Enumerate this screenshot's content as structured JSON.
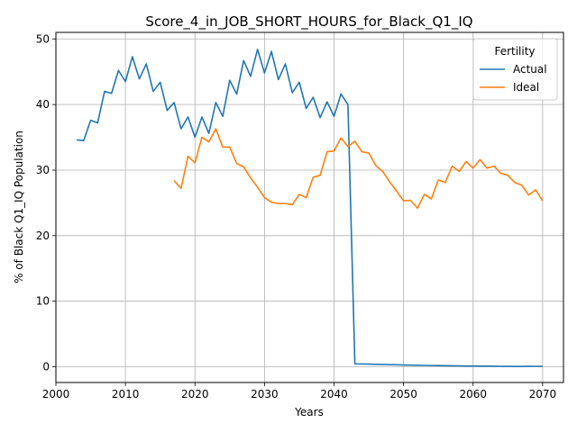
{
  "chart_data": {
    "type": "line",
    "title": "Score_4_in_JOB_SHORT_HOURS_for_Black_Q1_IQ",
    "xlabel": "Years",
    "ylabel": "% of Black Q1_IQ Population",
    "xlim": [
      2000,
      2073
    ],
    "ylim": [
      -2.4,
      51
    ],
    "xticks": [
      2000,
      2010,
      2020,
      2030,
      2040,
      2050,
      2060,
      2070
    ],
    "yticks": [
      0,
      10,
      20,
      30,
      40,
      50
    ],
    "grid": true,
    "legend": {
      "title": "Fertility",
      "placement": "top-right"
    },
    "series": [
      {
        "name": "Actual",
        "color": "#1f77b4",
        "x": [
          2003,
          2004,
          2005,
          2006,
          2007,
          2008,
          2009,
          2010,
          2011,
          2012,
          2013,
          2014,
          2015,
          2016,
          2017,
          2018,
          2019,
          2020,
          2021,
          2022,
          2023,
          2024,
          2025,
          2026,
          2027,
          2028,
          2029,
          2030,
          2031,
          2032,
          2033,
          2034,
          2035,
          2036,
          2037,
          2038,
          2039,
          2040,
          2041,
          2042,
          2043,
          2044,
          2045,
          2046,
          2047,
          2048,
          2049,
          2050,
          2051,
          2052,
          2053,
          2054,
          2055,
          2056,
          2057,
          2058,
          2059,
          2060,
          2061,
          2062,
          2063,
          2064,
          2065,
          2066,
          2067,
          2068,
          2069,
          2070
        ],
        "values": [
          34.6,
          34.5,
          37.6,
          37.2,
          42.0,
          41.7,
          45.2,
          43.5,
          47.3,
          43.9,
          46.2,
          42.0,
          43.4,
          39.1,
          40.3,
          36.3,
          38.1,
          35.0,
          38.1,
          35.6,
          40.3,
          38.2,
          43.7,
          41.6,
          46.7,
          44.3,
          48.4,
          44.8,
          48.1,
          43.8,
          46.2,
          41.8,
          43.4,
          39.4,
          41.1,
          38.0,
          40.4,
          38.2,
          41.6,
          40.0,
          0.45,
          0.42,
          0.4,
          0.37,
          0.35,
          0.32,
          0.3,
          0.27,
          0.25,
          0.23,
          0.21,
          0.19,
          0.18,
          0.16,
          0.15,
          0.14,
          0.12,
          0.11,
          0.1,
          0.09,
          0.08,
          0.07,
          0.06,
          0.05,
          0.05,
          0.08,
          0.07,
          0.06
        ]
      },
      {
        "name": "Ideal",
        "color": "#ff7f0e",
        "x": [
          2017,
          2018,
          2019,
          2020,
          2021,
          2022,
          2023,
          2024,
          2025,
          2026,
          2027,
          2028,
          2029,
          2030,
          2031,
          2032,
          2033,
          2034,
          2035,
          2036,
          2037,
          2038,
          2039,
          2040,
          2041,
          2042,
          2043,
          2044,
          2045,
          2046,
          2047,
          2048,
          2049,
          2050,
          2051,
          2052,
          2053,
          2054,
          2055,
          2056,
          2057,
          2058,
          2059,
          2060,
          2061,
          2062,
          2063,
          2064,
          2065,
          2066,
          2067,
          2068,
          2069,
          2070
        ],
        "values": [
          28.4,
          27.2,
          32.1,
          31.1,
          35.0,
          34.3,
          36.3,
          33.5,
          33.5,
          31.0,
          30.5,
          28.8,
          27.4,
          25.8,
          25.1,
          24.9,
          24.9,
          24.7,
          26.3,
          25.8,
          28.9,
          29.2,
          32.8,
          32.9,
          34.9,
          33.6,
          34.4,
          32.8,
          32.6,
          30.7,
          29.8,
          28.2,
          26.8,
          25.3,
          25.4,
          24.2,
          26.3,
          25.6,
          28.5,
          28.1,
          30.6,
          29.8,
          31.3,
          30.3,
          31.6,
          30.3,
          30.6,
          29.5,
          29.2,
          28.1,
          27.7,
          26.2,
          27.0,
          25.3
        ]
      }
    ]
  }
}
